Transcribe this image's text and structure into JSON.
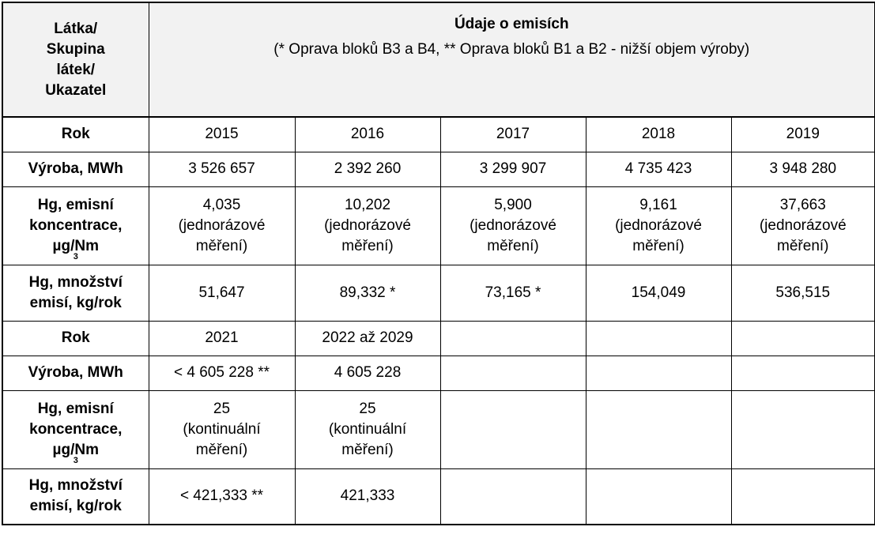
{
  "header": {
    "corner": [
      "Látka/",
      "Skupina",
      "látek/",
      "Ukazatel"
    ],
    "title": "Údaje o emisích",
    "subtitle": "(* Oprava bloků B3 a B4, ** Oprava bloků B1 a B2 - nižší objem výroby)"
  },
  "labels": {
    "rok": "Rok",
    "vyroba": "Výroba, MWh",
    "conc_1": "Hg, emisní",
    "conc_2": "koncentrace,",
    "conc_3": "µg/Nm",
    "conc_sup": "3",
    "mnozstvi_1": "Hg, množství",
    "mnozstvi_2": "emisí, kg/rok"
  },
  "block1": {
    "years": [
      "2015",
      "2016",
      "2017",
      "2018",
      "2019"
    ],
    "vyroba": [
      "3 526 657",
      "2 392 260",
      "3 299 907",
      "4 735 423",
      "3 948 280"
    ],
    "conc_values": [
      "4,035",
      "10,202",
      "5,900",
      "9,161",
      "37,663"
    ],
    "conc_note_1": "(jednorázové",
    "conc_note_2": "měření)",
    "mnozstvi": [
      "51,647",
      "89,332 *",
      "73,165 *",
      "154,049",
      "536,515"
    ]
  },
  "block2": {
    "years": [
      "2021",
      "2022 až 2029"
    ],
    "vyroba": [
      "< 4 605 228 **",
      "4 605 228"
    ],
    "conc_values": [
      "25",
      "25"
    ],
    "conc_note_1": "(kontinuální",
    "conc_note_2": "měření)",
    "mnozstvi": [
      "< 421,333 **",
      "421,333"
    ]
  }
}
